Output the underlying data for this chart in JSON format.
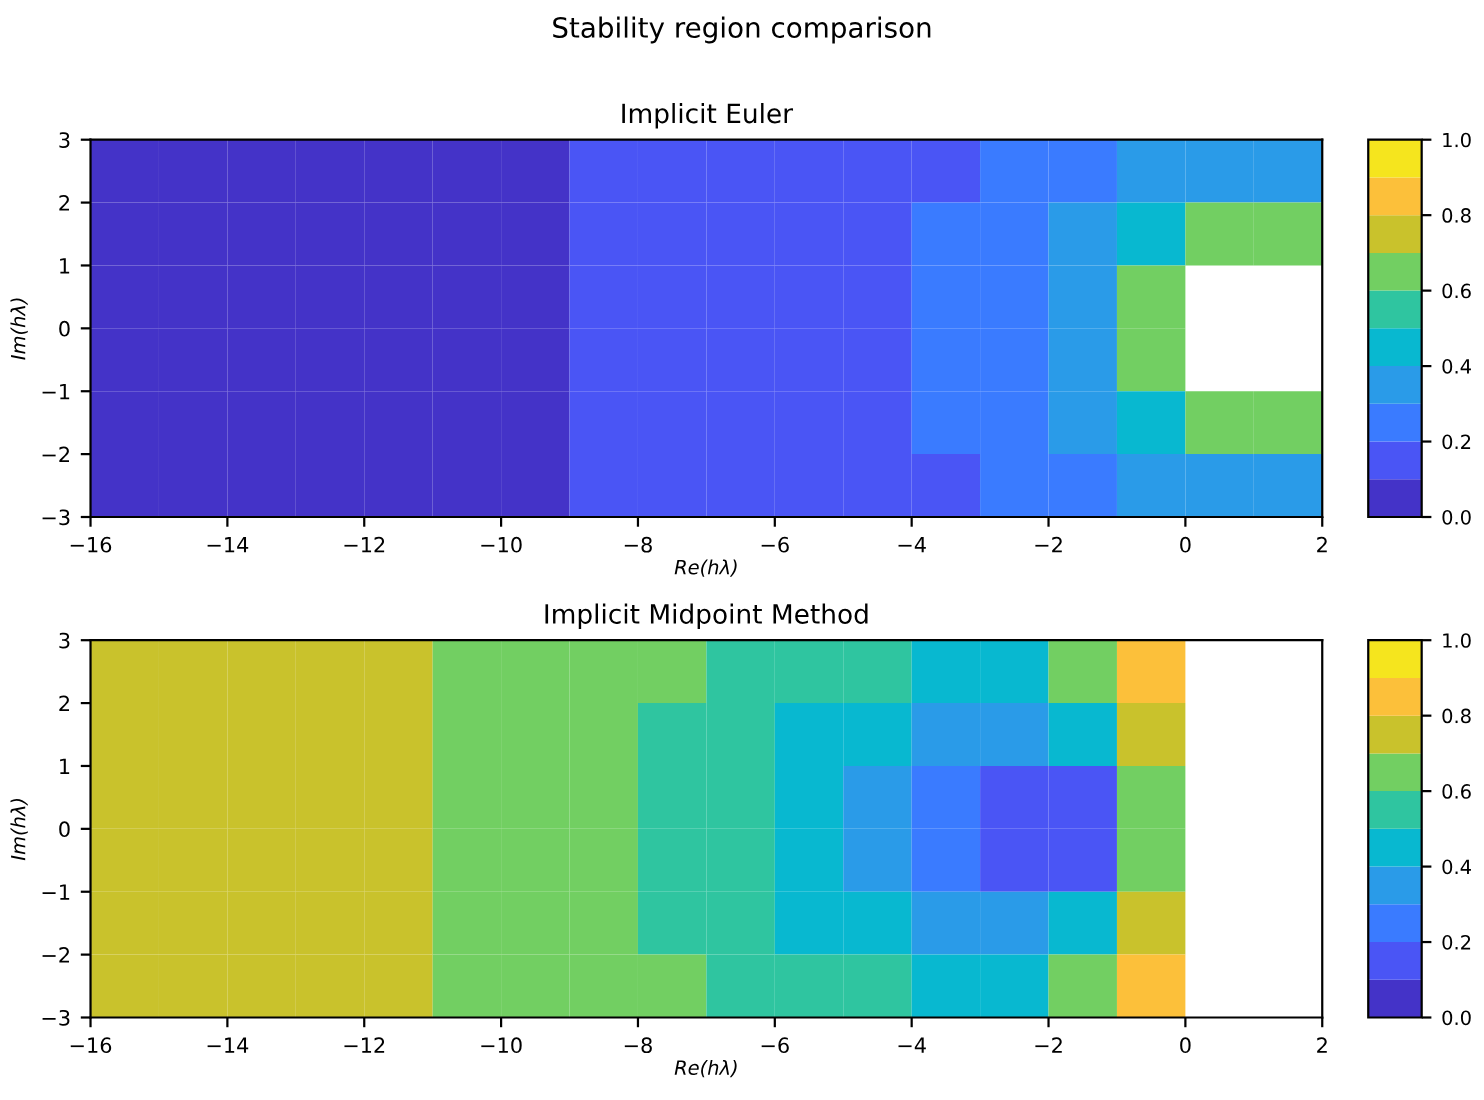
{
  "chart_data": [
    {
      "type": "heatmap",
      "title": "Implicit Euler",
      "annotations": [
        "Stability region comparison"
      ],
      "xlabel": "Re(hλ)",
      "ylabel": "Im(hλ)",
      "x": [
        -15.5,
        -14.5,
        -13.5,
        -12.5,
        -11.5,
        -10.5,
        -9.5,
        -8.5,
        -7.5,
        -6.5,
        -5.5,
        -4.5,
        -3.5,
        -2.5,
        -1.5,
        -0.5,
        0.5,
        1.5
      ],
      "y": [
        2.5,
        1.5,
        0.5,
        -0.5,
        -1.5,
        -2.5
      ],
      "cells": [
        [
          0.05,
          0.05,
          0.05,
          0.05,
          0.05,
          0.05,
          0.05,
          0.15,
          0.15,
          0.15,
          0.15,
          0.15,
          0.15,
          0.25,
          0.25,
          0.35,
          0.35,
          0.35
        ],
        [
          0.05,
          0.05,
          0.05,
          0.05,
          0.05,
          0.05,
          0.05,
          0.15,
          0.15,
          0.15,
          0.15,
          0.15,
          0.25,
          0.25,
          0.35,
          0.45,
          0.65,
          0.65
        ],
        [
          0.05,
          0.05,
          0.05,
          0.05,
          0.05,
          0.05,
          0.05,
          0.15,
          0.15,
          0.15,
          0.15,
          0.15,
          0.25,
          0.25,
          0.35,
          0.65,
          null,
          null
        ],
        [
          0.05,
          0.05,
          0.05,
          0.05,
          0.05,
          0.05,
          0.05,
          0.15,
          0.15,
          0.15,
          0.15,
          0.15,
          0.25,
          0.25,
          0.35,
          0.65,
          null,
          null
        ],
        [
          0.05,
          0.05,
          0.05,
          0.05,
          0.05,
          0.05,
          0.05,
          0.15,
          0.15,
          0.15,
          0.15,
          0.15,
          0.25,
          0.25,
          0.35,
          0.45,
          0.65,
          0.65
        ],
        [
          0.05,
          0.05,
          0.05,
          0.05,
          0.05,
          0.05,
          0.05,
          0.15,
          0.15,
          0.15,
          0.15,
          0.15,
          0.15,
          0.25,
          0.25,
          0.35,
          0.35,
          0.35
        ]
      ],
      "colors": [
        "#4433c8",
        "#4a55f5",
        "#3a7bff",
        "#2a9be8",
        "#08b8d0",
        "#2fc5a0",
        "#72cf62",
        "#c9c22c",
        "#fcc03a",
        "#f5e51e"
      ],
      "xlim": [
        -16,
        2
      ],
      "xticks": [
        {
          "value": -16,
          "label": "−16"
        },
        {
          "value": -14,
          "label": "−14"
        },
        {
          "value": -12,
          "label": "−12"
        },
        {
          "value": -10,
          "label": "−10"
        },
        {
          "value": -8,
          "label": "−8"
        },
        {
          "value": -6,
          "label": "−6"
        },
        {
          "value": -4,
          "label": "−4"
        },
        {
          "value": -2,
          "label": "−2"
        },
        0,
        2
      ],
      "ylim": [
        -3,
        3
      ],
      "yticks": [
        {
          "value": -3,
          "label": "−3"
        },
        {
          "value": -2,
          "label": "−2"
        },
        {
          "value": -1,
          "label": "−1"
        },
        0,
        1,
        2,
        3
      ],
      "clim": [
        0,
        1
      ],
      "cticks": [
        {
          "value": 0,
          "label": "0.0"
        },
        {
          "value": 0.2,
          "label": "0.2"
        },
        {
          "value": 0.4,
          "label": "0.4"
        },
        {
          "value": 0.6,
          "label": "0.6"
        },
        {
          "value": 0.8,
          "label": "0.8"
        },
        {
          "value": 1,
          "label": "1.0"
        }
      ]
    },
    {
      "type": "heatmap",
      "title": "Implicit Midpoint Method",
      "xlabel": "Re(hλ)",
      "ylabel": "Im(hλ)",
      "x": [
        -15.5,
        -14.5,
        -13.5,
        -12.5,
        -11.5,
        -10.5,
        -9.5,
        -8.5,
        -7.5,
        -6.5,
        -5.5,
        -4.5,
        -3.5,
        -2.5,
        -1.5,
        -0.5,
        0.5,
        1.5
      ],
      "y": [
        2.5,
        1.5,
        0.5,
        -0.5,
        -1.5,
        -2.5
      ],
      "cells": [
        [
          0.75,
          0.75,
          0.75,
          0.75,
          0.75,
          0.65,
          0.65,
          0.65,
          0.65,
          0.55,
          0.55,
          0.55,
          0.45,
          0.45,
          0.65,
          0.85,
          null,
          null
        ],
        [
          0.75,
          0.75,
          0.75,
          0.75,
          0.75,
          0.65,
          0.65,
          0.65,
          0.55,
          0.55,
          0.45,
          0.45,
          0.35,
          0.35,
          0.45,
          0.75,
          null,
          null
        ],
        [
          0.75,
          0.75,
          0.75,
          0.75,
          0.75,
          0.65,
          0.65,
          0.65,
          0.55,
          0.55,
          0.45,
          0.35,
          0.25,
          0.15,
          0.15,
          0.65,
          null,
          null
        ],
        [
          0.75,
          0.75,
          0.75,
          0.75,
          0.75,
          0.65,
          0.65,
          0.65,
          0.55,
          0.55,
          0.45,
          0.35,
          0.25,
          0.15,
          0.15,
          0.65,
          null,
          null
        ],
        [
          0.75,
          0.75,
          0.75,
          0.75,
          0.75,
          0.65,
          0.65,
          0.65,
          0.55,
          0.55,
          0.45,
          0.45,
          0.35,
          0.35,
          0.45,
          0.75,
          null,
          null
        ],
        [
          0.75,
          0.75,
          0.75,
          0.75,
          0.75,
          0.65,
          0.65,
          0.65,
          0.65,
          0.55,
          0.55,
          0.55,
          0.45,
          0.45,
          0.65,
          0.85,
          null,
          null
        ]
      ],
      "colors": [
        "#4433c8",
        "#4a55f5",
        "#3a7bff",
        "#2a9be8",
        "#08b8d0",
        "#2fc5a0",
        "#72cf62",
        "#c9c22c",
        "#fcc03a",
        "#f5e51e"
      ],
      "xlim": [
        -16,
        2
      ],
      "xticks": [
        {
          "value": -16,
          "label": "−16"
        },
        {
          "value": -14,
          "label": "−14"
        },
        {
          "value": -12,
          "label": "−12"
        },
        {
          "value": -10,
          "label": "−10"
        },
        {
          "value": -8,
          "label": "−8"
        },
        {
          "value": -6,
          "label": "−6"
        },
        {
          "value": -4,
          "label": "−4"
        },
        {
          "value": -2,
          "label": "−2"
        },
        0,
        2
      ],
      "ylim": [
        -3,
        3
      ],
      "yticks": [
        {
          "value": -3,
          "label": "−3"
        },
        {
          "value": -2,
          "label": "−2"
        },
        {
          "value": -1,
          "label": "−1"
        },
        0,
        1,
        2,
        3
      ],
      "clim": [
        0,
        1
      ],
      "cticks": [
        {
          "value": 0,
          "label": "0.0"
        },
        {
          "value": 0.2,
          "label": "0.2"
        },
        {
          "value": 0.4,
          "label": "0.4"
        },
        {
          "value": 0.6,
          "label": "0.6"
        },
        {
          "value": 0.8,
          "label": "0.8"
        },
        {
          "value": 1,
          "label": "1.0"
        }
      ]
    }
  ]
}
